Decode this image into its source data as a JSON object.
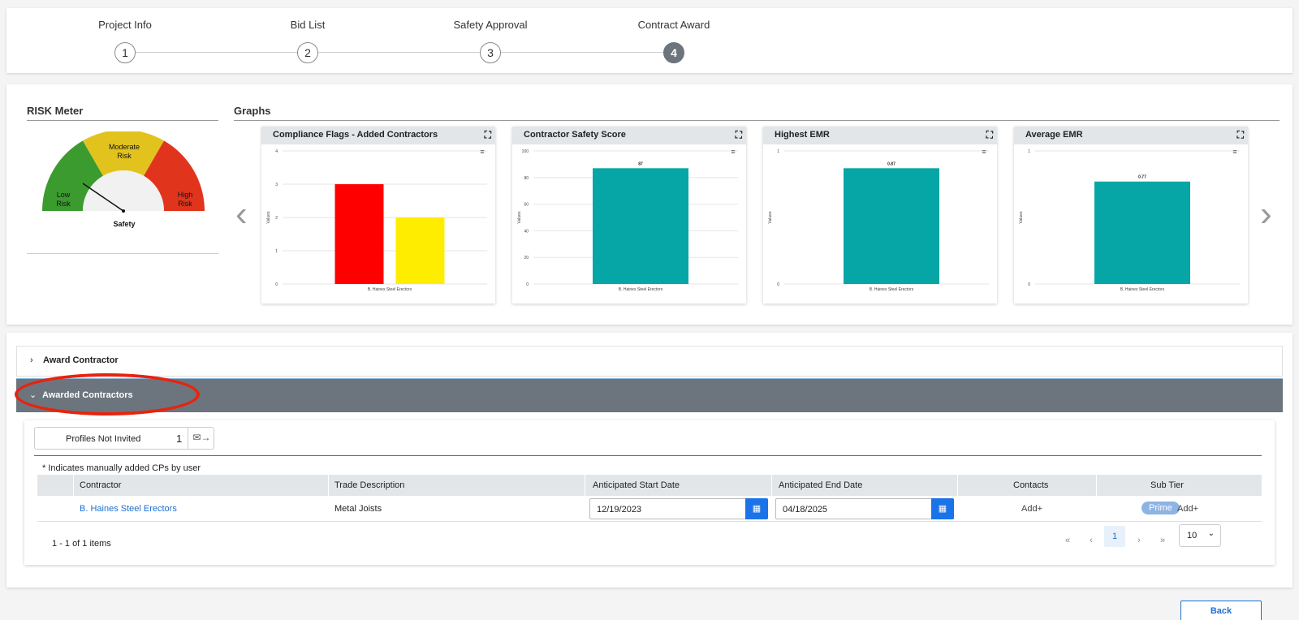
{
  "stepper": {
    "steps": [
      {
        "label": "Project Info",
        "number": "1"
      },
      {
        "label": "Bid List",
        "number": "2"
      },
      {
        "label": "Safety Approval",
        "number": "3"
      },
      {
        "label": "Contract Award",
        "number": "4"
      }
    ],
    "active_step": 4
  },
  "risk_meter": {
    "title": "RISK Meter",
    "zones": {
      "low": [
        "Low",
        "Risk"
      ],
      "moderate": [
        "Moderate",
        "Risk"
      ],
      "high": [
        "High",
        "Risk"
      ]
    },
    "caption": "Safety",
    "colors": {
      "low": "#3c9b2f",
      "moderate": "#e2c31e",
      "high": "#e0351c"
    }
  },
  "graphs": {
    "title": "Graphs",
    "icons": {
      "prev": "chevron-left-icon",
      "next": "chevron-right-icon",
      "expand": "expand-icon",
      "menu": "hamburger-menu-icon"
    }
  },
  "chart_data": [
    {
      "type": "bar",
      "title": "Compliance Flags - Added Contractors",
      "categories": [
        "B. Haines Steel Erectors"
      ],
      "series": [
        {
          "values": [
            3
          ],
          "color": "#ff0000"
        },
        {
          "values": [
            2
          ],
          "color": "#ffed00"
        }
      ],
      "ylabel": "Values",
      "ylim": [
        0,
        4
      ],
      "yticks": [
        "0",
        "1",
        "2",
        "3",
        "4"
      ],
      "data_labels": []
    },
    {
      "type": "bar",
      "title": "Contractor Safety Score",
      "categories": [
        "B. Haines Steel Erectors"
      ],
      "series": [
        {
          "values": [
            87
          ],
          "color": "#06a6a6"
        }
      ],
      "ylabel": "Values",
      "ylim": [
        0,
        100
      ],
      "yticks": [
        "0",
        "20",
        "40",
        "60",
        "80",
        "100"
      ],
      "data_labels": [
        "87"
      ]
    },
    {
      "type": "bar",
      "title": "Highest EMR",
      "categories": [
        "B. Haines Steel Erectors"
      ],
      "series": [
        {
          "values": [
            0.87
          ],
          "color": "#06a6a6"
        }
      ],
      "ylabel": "Values",
      "ylim": [
        0,
        1
      ],
      "yticks": [
        "0",
        "1"
      ],
      "data_labels": [
        "0.87"
      ]
    },
    {
      "type": "bar",
      "title": "Average EMR",
      "categories": [
        "B. Haines Steel Erectors"
      ],
      "series": [
        {
          "values": [
            0.77
          ],
          "color": "#06a6a6"
        }
      ],
      "ylabel": "Values",
      "ylim": [
        0,
        1
      ],
      "yticks": [
        "0",
        "1"
      ],
      "data_labels": [
        "0.77"
      ]
    }
  ],
  "accordion": {
    "award_contractor": "Award Contractor",
    "awarded_contractors": "Awarded Contractors"
  },
  "profiles_not_invited": {
    "label": "Profiles Not Invited",
    "count": "1"
  },
  "note": "* Indicates manually added CPs by user",
  "table": {
    "headers": {
      "contractor": "Contractor",
      "trade": "Trade Description",
      "start": "Anticipated Start Date",
      "end": "Anticipated End Date",
      "contacts": "Contacts",
      "subtier": "Sub Tier"
    },
    "rows": [
      {
        "contractor": "B. Haines Steel Erectors",
        "trade": "Metal Joists",
        "start": "12/19/2023",
        "end": "04/18/2025",
        "contacts": "Add+",
        "subtier_badge": "Prime",
        "subtier_add": "Add+"
      }
    ]
  },
  "pager": {
    "info": "1 - 1 of 1 items",
    "current_page": "1",
    "page_size": "10"
  },
  "back_button": "Back",
  "annotation": {
    "color": "#e8230d"
  }
}
